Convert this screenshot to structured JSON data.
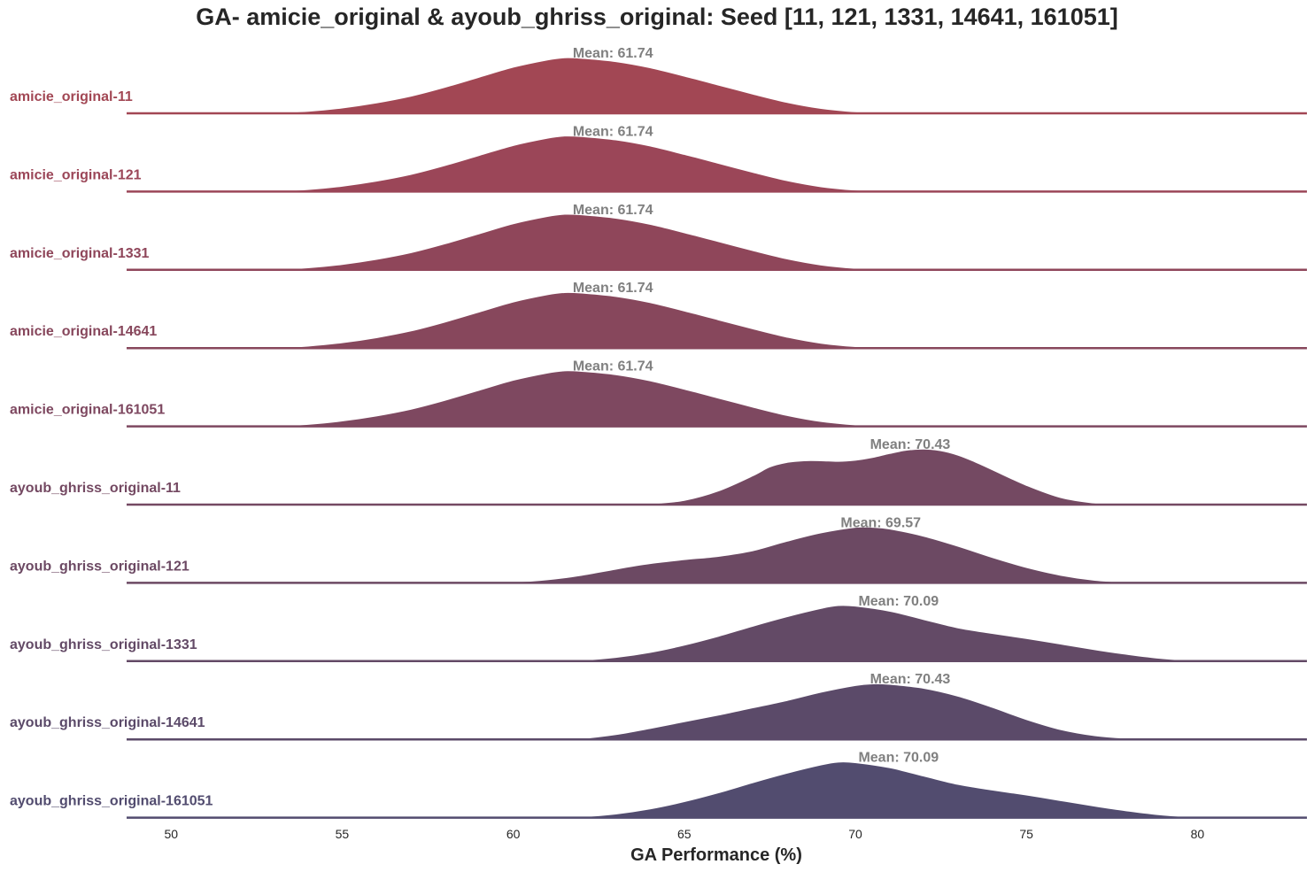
{
  "chart_data": {
    "type": "ridgeline",
    "title": "GA- amicie_original & ayoub_ghriss_original: Seed [11, 121, 1331, 14641, 161051]",
    "xlabel": "GA Performance (%)",
    "ylabel": "",
    "xlim": [
      48.7,
      83.2
    ],
    "xticks": [
      50,
      55,
      60,
      65,
      70,
      75,
      80
    ],
    "grid": false,
    "mean_prefix": "Mean: ",
    "series": [
      {
        "name": "amicie_original-11",
        "mean": "61.74",
        "color": "#a24754",
        "x": [
          48.7,
          50,
          52,
          53,
          54,
          55,
          56,
          57,
          58,
          59,
          60,
          61,
          61.5,
          62,
          63,
          64,
          65,
          66,
          67,
          68,
          69,
          70,
          71,
          73,
          83.2
        ],
        "density": [
          0,
          0,
          0,
          0.01,
          0.04,
          0.1,
          0.19,
          0.31,
          0.47,
          0.65,
          0.83,
          0.96,
          1.0,
          0.99,
          0.93,
          0.82,
          0.67,
          0.51,
          0.35,
          0.2,
          0.09,
          0.03,
          0.005,
          0,
          0
        ]
      },
      {
        "name": "amicie_original-121",
        "mean": "61.74",
        "color": "#9b4658",
        "x": [
          48.7,
          50,
          52,
          53,
          54,
          55,
          56,
          57,
          58,
          59,
          60,
          61,
          61.5,
          62,
          63,
          64,
          65,
          66,
          67,
          68,
          69,
          70,
          71,
          73,
          83.2
        ],
        "density": [
          0,
          0,
          0,
          0.01,
          0.04,
          0.1,
          0.19,
          0.31,
          0.47,
          0.65,
          0.83,
          0.96,
          1.0,
          0.99,
          0.93,
          0.82,
          0.67,
          0.51,
          0.35,
          0.2,
          0.09,
          0.03,
          0.005,
          0,
          0
        ]
      },
      {
        "name": "amicie_original-1331",
        "mean": "61.74",
        "color": "#8f465a",
        "x": [
          48.7,
          50,
          52,
          53,
          54,
          55,
          56,
          57,
          58,
          59,
          60,
          61,
          61.5,
          62,
          63,
          64,
          65,
          66,
          67,
          68,
          69,
          70,
          71,
          73,
          83.2
        ],
        "density": [
          0,
          0,
          0,
          0.01,
          0.04,
          0.1,
          0.19,
          0.31,
          0.47,
          0.65,
          0.83,
          0.96,
          1.0,
          0.99,
          0.93,
          0.82,
          0.67,
          0.51,
          0.35,
          0.2,
          0.09,
          0.03,
          0.005,
          0,
          0
        ]
      },
      {
        "name": "amicie_original-14641",
        "mean": "61.74",
        "color": "#87475c",
        "x": [
          48.7,
          50,
          52,
          53,
          54,
          55,
          56,
          57,
          58,
          59,
          60,
          61,
          61.5,
          62,
          63,
          64,
          65,
          66,
          67,
          68,
          69,
          70,
          71,
          73,
          83.2
        ],
        "density": [
          0,
          0,
          0,
          0.01,
          0.04,
          0.1,
          0.19,
          0.31,
          0.47,
          0.65,
          0.83,
          0.96,
          1.0,
          0.99,
          0.93,
          0.82,
          0.67,
          0.51,
          0.35,
          0.2,
          0.09,
          0.03,
          0.005,
          0,
          0
        ]
      },
      {
        "name": "amicie_original-161051",
        "mean": "61.74",
        "color": "#7e4860",
        "x": [
          48.7,
          50,
          52,
          53,
          54,
          55,
          56,
          57,
          58,
          59,
          60,
          61,
          61.5,
          62,
          63,
          64,
          65,
          66,
          67,
          68,
          69,
          70,
          71,
          73,
          83.2
        ],
        "density": [
          0,
          0,
          0,
          0.01,
          0.04,
          0.1,
          0.19,
          0.31,
          0.47,
          0.65,
          0.83,
          0.96,
          1.0,
          0.99,
          0.93,
          0.82,
          0.67,
          0.51,
          0.35,
          0.2,
          0.09,
          0.03,
          0.005,
          0,
          0
        ]
      },
      {
        "name": "ayoub_ghriss_original-11",
        "mean": "70.43",
        "color": "#744962",
        "x": [
          48.7,
          63,
          64,
          65,
          66,
          67,
          67.5,
          68,
          68.5,
          69,
          69.5,
          70,
          70.5,
          71,
          71.5,
          72,
          72.5,
          73,
          73.5,
          74,
          75,
          76,
          77,
          78,
          83.2
        ],
        "density": [
          0,
          0,
          0.02,
          0.08,
          0.25,
          0.52,
          0.68,
          0.76,
          0.79,
          0.79,
          0.78,
          0.8,
          0.85,
          0.92,
          0.98,
          1.0,
          0.97,
          0.89,
          0.77,
          0.63,
          0.35,
          0.13,
          0.03,
          0,
          0
        ]
      },
      {
        "name": "ayoub_ghriss_original-121",
        "mean": "69.57",
        "color": "#6c4963",
        "x": [
          48.7,
          58,
          60,
          61,
          62,
          63,
          64,
          65,
          66,
          67,
          68,
          69,
          70,
          70.5,
          71,
          72,
          73,
          74,
          75,
          76,
          77,
          78,
          79,
          80,
          83.2
        ],
        "density": [
          0,
          0,
          0.02,
          0.06,
          0.14,
          0.25,
          0.35,
          0.42,
          0.48,
          0.58,
          0.75,
          0.9,
          1.0,
          1.0,
          0.97,
          0.84,
          0.66,
          0.46,
          0.28,
          0.14,
          0.05,
          0.01,
          0,
          0,
          0
        ]
      },
      {
        "name": "ayoub_ghriss_original-1331",
        "mean": "70.09",
        "color": "#634a66",
        "x": [
          48.7,
          61,
          62,
          63,
          64,
          65,
          66,
          67,
          68,
          69,
          69.5,
          70,
          71,
          72,
          73,
          74,
          75,
          76,
          77,
          78,
          79,
          80,
          81,
          83.2
        ],
        "density": [
          0,
          0,
          0.02,
          0.07,
          0.16,
          0.29,
          0.45,
          0.63,
          0.8,
          0.95,
          1.0,
          0.99,
          0.9,
          0.75,
          0.6,
          0.5,
          0.41,
          0.31,
          0.21,
          0.12,
          0.05,
          0.01,
          0,
          0
        ]
      },
      {
        "name": "ayoub_ghriss_original-14641",
        "mean": "70.43",
        "color": "#5b4a69",
        "x": [
          48.7,
          61,
          62,
          63,
          64,
          65,
          66,
          67,
          68,
          69,
          70,
          70.5,
          71,
          72,
          73,
          74,
          75,
          76,
          77,
          78,
          79,
          80,
          83.2
        ],
        "density": [
          0,
          0,
          0.02,
          0.09,
          0.2,
          0.32,
          0.44,
          0.57,
          0.7,
          0.85,
          0.97,
          1.0,
          0.99,
          0.92,
          0.78,
          0.58,
          0.36,
          0.18,
          0.07,
          0.02,
          0,
          0,
          0
        ]
      },
      {
        "name": "ayoub_ghriss_original-161051",
        "mean": "70.09",
        "color": "#524c6f",
        "x": [
          48.7,
          61,
          62,
          63,
          64,
          65,
          66,
          67,
          68,
          69,
          69.5,
          70,
          71,
          72,
          73,
          74,
          75,
          76,
          77,
          78,
          79,
          80,
          81,
          83.2
        ],
        "density": [
          0,
          0,
          0.02,
          0.07,
          0.16,
          0.29,
          0.45,
          0.63,
          0.8,
          0.95,
          1.0,
          0.99,
          0.9,
          0.75,
          0.6,
          0.5,
          0.41,
          0.31,
          0.21,
          0.12,
          0.05,
          0.01,
          0,
          0
        ]
      }
    ]
  }
}
